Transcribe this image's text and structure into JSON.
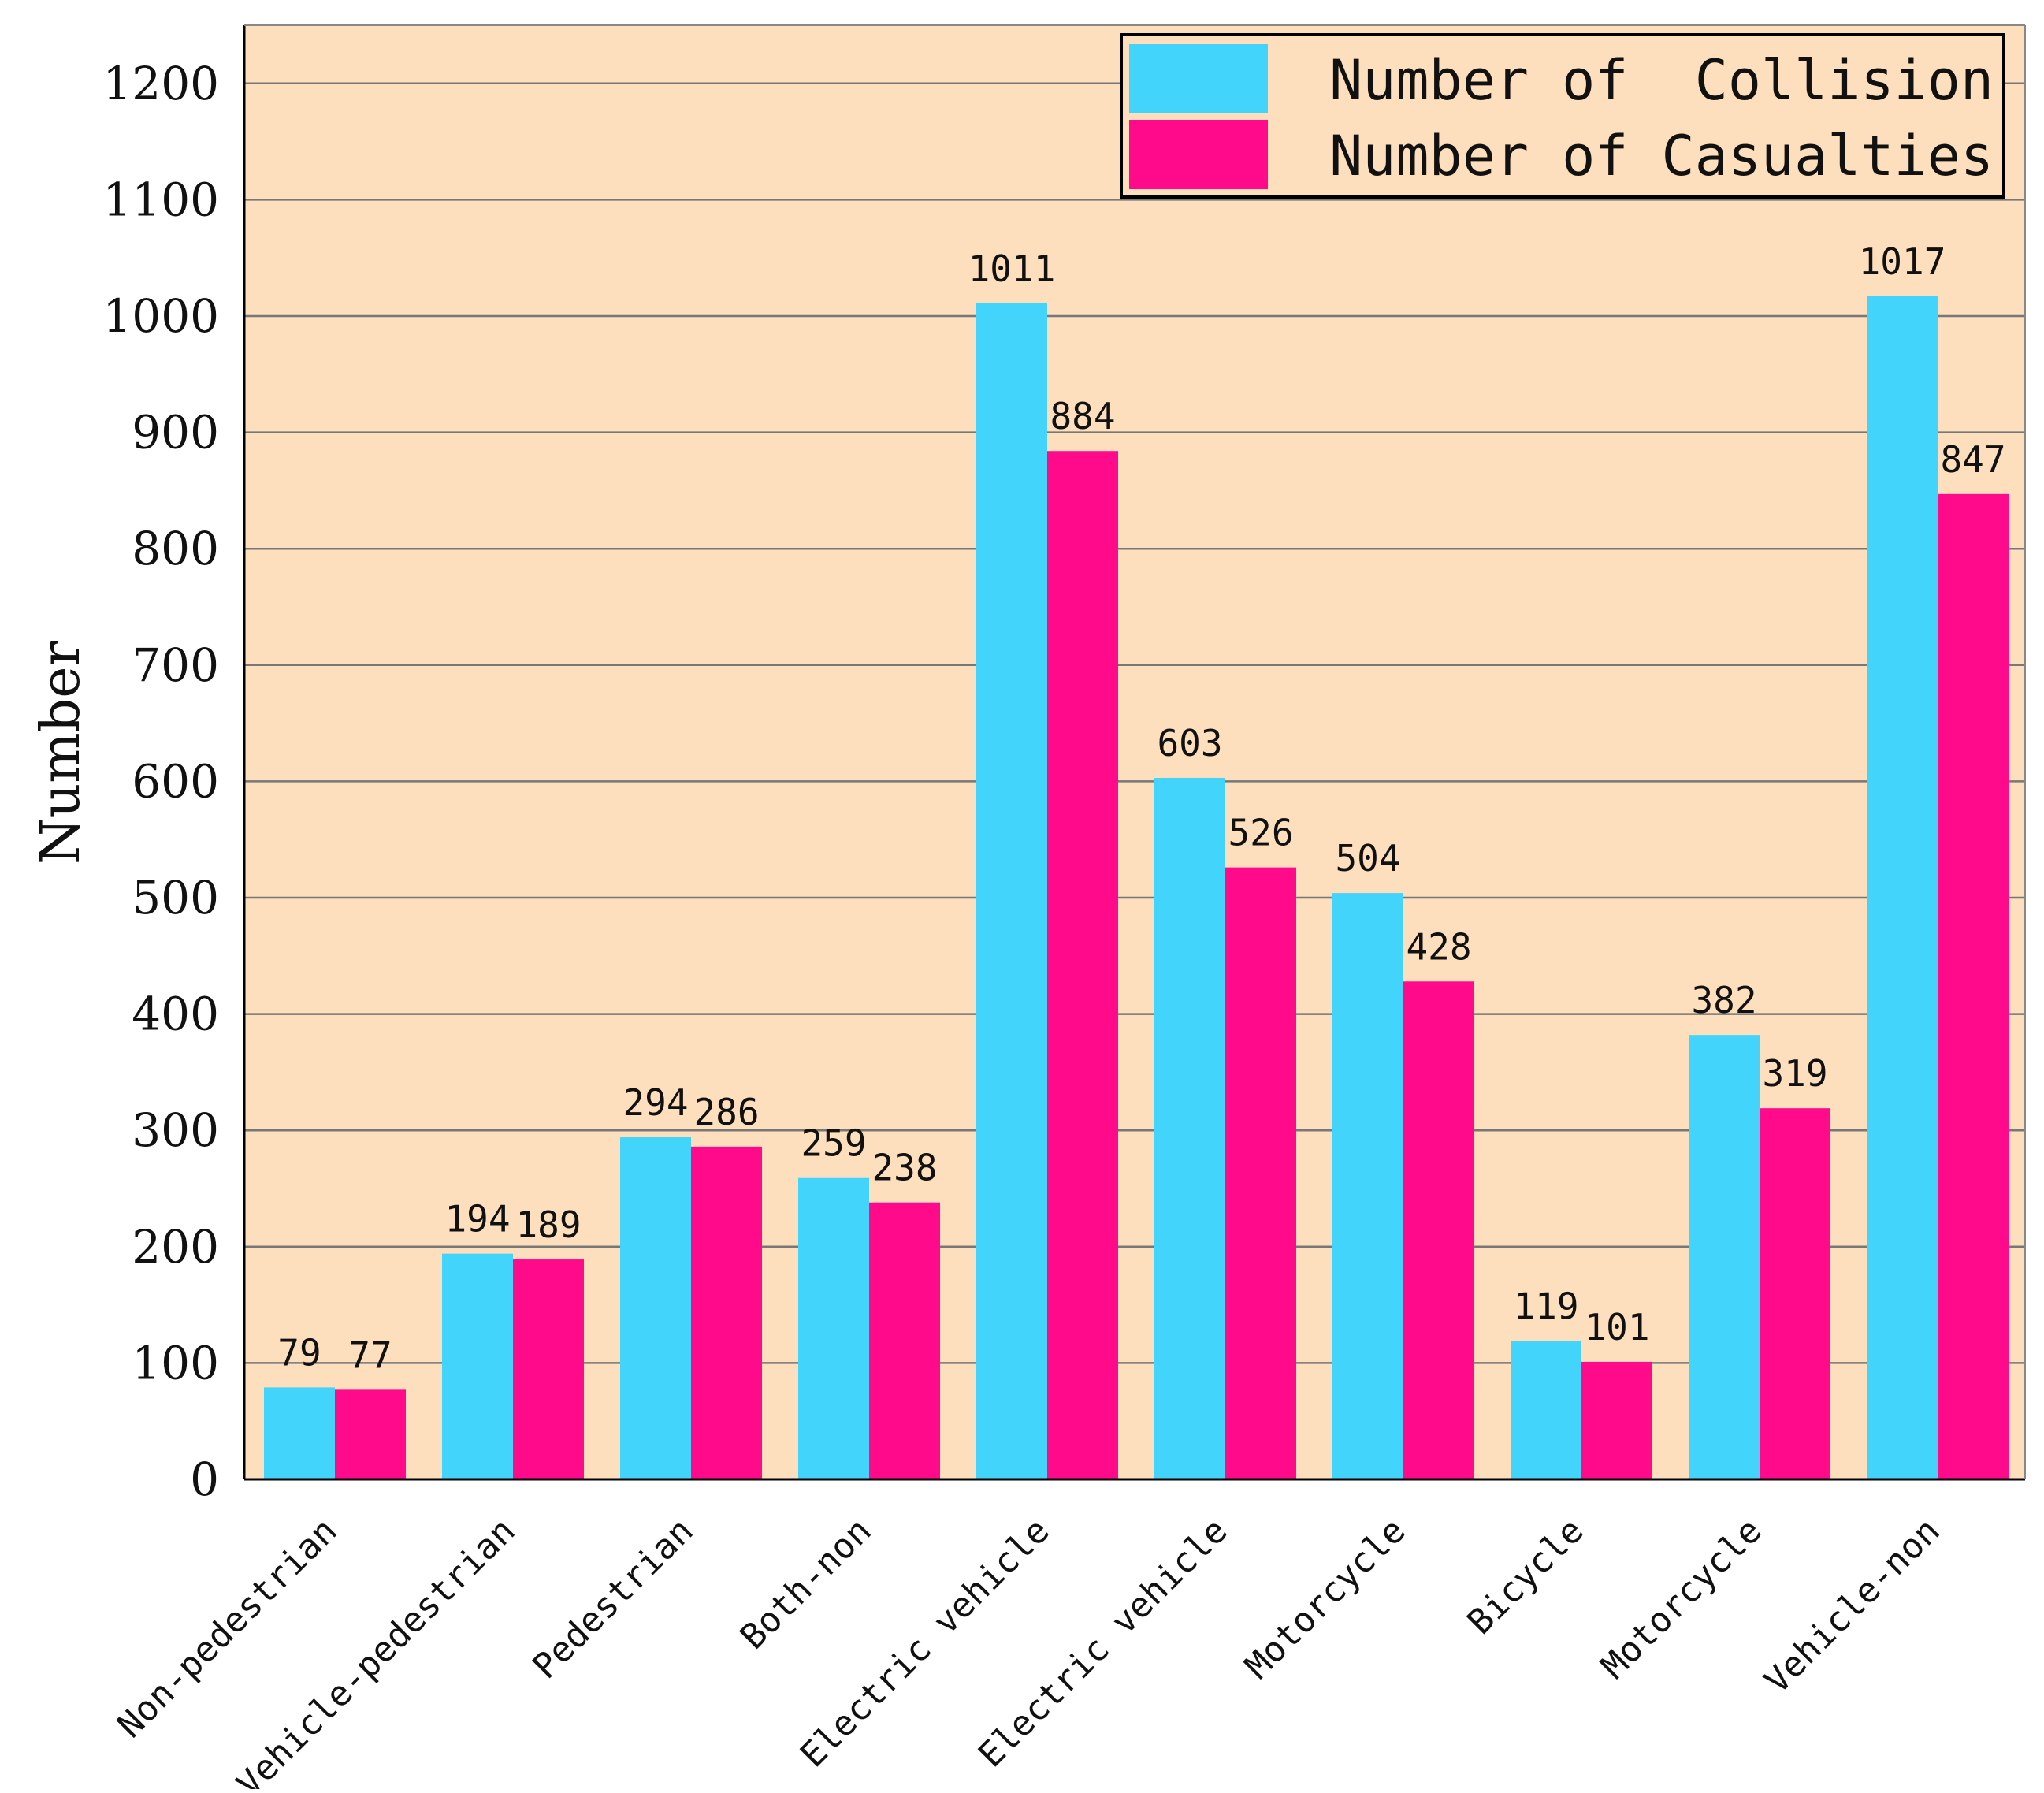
{
  "chart_data": {
    "type": "bar",
    "title": "",
    "xlabel": "",
    "ylabel": "Number",
    "ylim": [
      0,
      1250
    ],
    "yticks": [
      0,
      100,
      200,
      300,
      400,
      500,
      600,
      700,
      800,
      900,
      1000,
      1100,
      1200
    ],
    "grid": true,
    "legend_position": "top-right",
    "categories": [
      "Non-pedestrian",
      "Vehicle-pedestrian",
      "Pedestrian",
      "Both-non",
      "Electric vehicle",
      "Electric vehicle",
      "Motorcycle",
      "Bicycle",
      "Motorcycle",
      "Vehicle-non"
    ],
    "series": [
      {
        "name": "Number of  Collision",
        "color": "#42D4FA",
        "values": [
          79,
          194,
          294,
          259,
          1011,
          603,
          504,
          119,
          382,
          1017
        ]
      },
      {
        "name": "Number of Casualties",
        "color": "#FF0A8A",
        "values": [
          77,
          189,
          286,
          238,
          884,
          526,
          428,
          101,
          319,
          847
        ]
      }
    ]
  },
  "colors": {
    "plot_background": "#FDDFBE",
    "gridline": "#777777",
    "axis": "#000000"
  }
}
